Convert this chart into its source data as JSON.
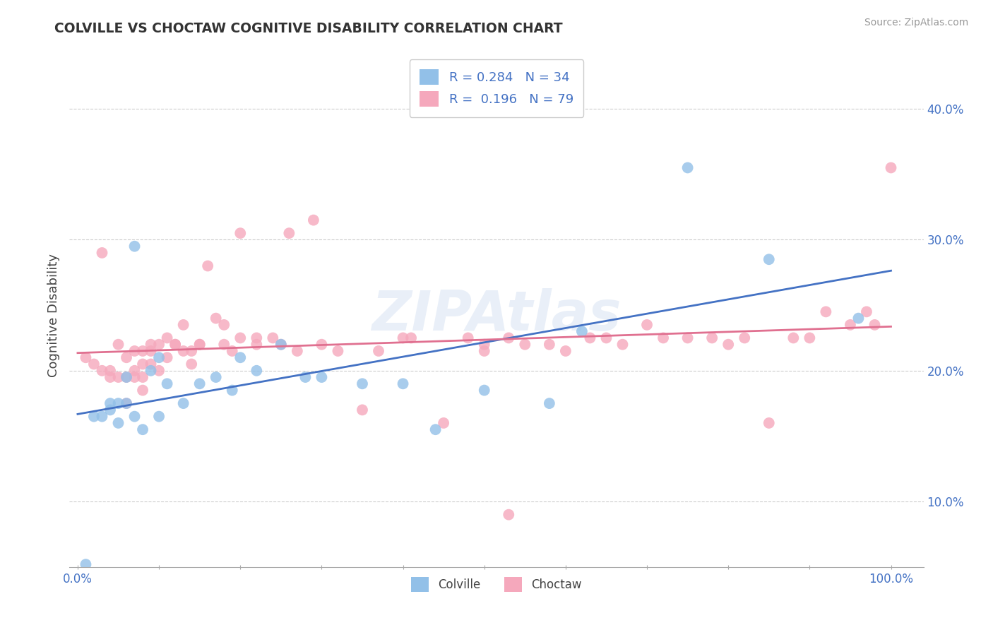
{
  "title": "COLVILLE VS CHOCTAW COGNITIVE DISABILITY CORRELATION CHART",
  "source": "Source: ZipAtlas.com",
  "ylabel": "Cognitive Disability",
  "yticks": [
    0.1,
    0.2,
    0.3,
    0.4
  ],
  "ytick_labels": [
    "10.0%",
    "20.0%",
    "30.0%",
    "40.0%"
  ],
  "xticks": [
    0.0,
    0.1,
    0.2,
    0.3,
    0.4,
    0.5,
    0.6,
    0.7,
    0.8,
    0.9,
    1.0
  ],
  "xtick_labels": [
    "0.0%",
    "",
    "",
    "",
    "",
    "",
    "",
    "",
    "",
    "",
    "100.0%"
  ],
  "xlim": [
    -0.01,
    1.04
  ],
  "ylim": [
    0.05,
    0.435
  ],
  "colville_R": 0.284,
  "colville_N": 34,
  "choctaw_R": 0.196,
  "choctaw_N": 79,
  "colville_color": "#92C0E8",
  "choctaw_color": "#F5A8BC",
  "colville_line_color": "#4472C4",
  "choctaw_line_color": "#E07090",
  "background_color": "#FFFFFF",
  "colville_x": [
    0.01,
    0.02,
    0.03,
    0.04,
    0.04,
    0.05,
    0.05,
    0.06,
    0.06,
    0.07,
    0.07,
    0.08,
    0.09,
    0.1,
    0.1,
    0.11,
    0.13,
    0.15,
    0.17,
    0.19,
    0.2,
    0.22,
    0.25,
    0.28,
    0.3,
    0.35,
    0.4,
    0.44,
    0.5,
    0.58,
    0.62,
    0.75,
    0.85,
    0.96
  ],
  "colville_y": [
    0.052,
    0.165,
    0.165,
    0.17,
    0.175,
    0.16,
    0.175,
    0.175,
    0.195,
    0.165,
    0.295,
    0.155,
    0.2,
    0.21,
    0.165,
    0.19,
    0.175,
    0.19,
    0.195,
    0.185,
    0.21,
    0.2,
    0.22,
    0.195,
    0.195,
    0.19,
    0.19,
    0.155,
    0.185,
    0.175,
    0.23,
    0.355,
    0.285,
    0.24
  ],
  "choctaw_x": [
    0.01,
    0.02,
    0.03,
    0.03,
    0.04,
    0.04,
    0.05,
    0.05,
    0.06,
    0.06,
    0.06,
    0.07,
    0.07,
    0.07,
    0.08,
    0.08,
    0.08,
    0.08,
    0.09,
    0.09,
    0.09,
    0.1,
    0.1,
    0.11,
    0.11,
    0.12,
    0.12,
    0.13,
    0.13,
    0.14,
    0.14,
    0.15,
    0.15,
    0.16,
    0.17,
    0.18,
    0.18,
    0.19,
    0.2,
    0.2,
    0.22,
    0.22,
    0.24,
    0.25,
    0.26,
    0.27,
    0.29,
    0.3,
    0.32,
    0.35,
    0.37,
    0.4,
    0.41,
    0.45,
    0.48,
    0.5,
    0.5,
    0.53,
    0.55,
    0.58,
    0.6,
    0.63,
    0.65,
    0.67,
    0.7,
    0.72,
    0.75,
    0.78,
    0.8,
    0.82,
    0.85,
    0.88,
    0.9,
    0.92,
    0.95,
    0.97,
    0.98,
    1.0,
    0.53
  ],
  "choctaw_y": [
    0.21,
    0.205,
    0.2,
    0.29,
    0.195,
    0.2,
    0.195,
    0.22,
    0.195,
    0.21,
    0.175,
    0.215,
    0.2,
    0.195,
    0.215,
    0.205,
    0.195,
    0.185,
    0.22,
    0.205,
    0.215,
    0.22,
    0.2,
    0.21,
    0.225,
    0.22,
    0.22,
    0.215,
    0.235,
    0.215,
    0.205,
    0.22,
    0.22,
    0.28,
    0.24,
    0.235,
    0.22,
    0.215,
    0.225,
    0.305,
    0.225,
    0.22,
    0.225,
    0.22,
    0.305,
    0.215,
    0.315,
    0.22,
    0.215,
    0.17,
    0.215,
    0.225,
    0.225,
    0.16,
    0.225,
    0.215,
    0.22,
    0.225,
    0.22,
    0.22,
    0.215,
    0.225,
    0.225,
    0.22,
    0.235,
    0.225,
    0.225,
    0.225,
    0.22,
    0.225,
    0.16,
    0.225,
    0.225,
    0.245,
    0.235,
    0.245,
    0.235,
    0.355,
    0.09
  ]
}
